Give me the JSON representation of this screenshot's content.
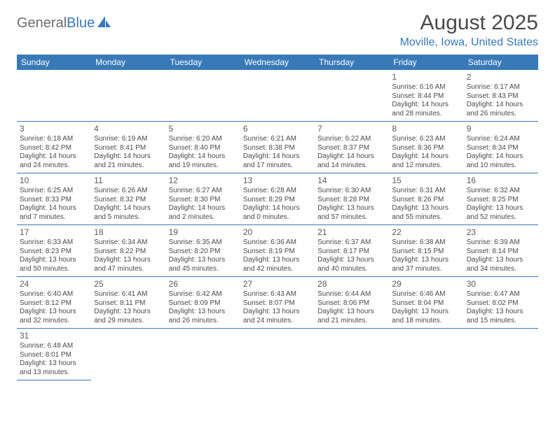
{
  "logo": {
    "part1": "General",
    "part2": "Blue"
  },
  "title": "August 2025",
  "location": "Moville, Iowa, United States",
  "colors": {
    "header_bg": "#3879b8",
    "header_text": "#ffffff",
    "body_text": "#4a4a4a",
    "accent": "#3879b8",
    "logo_gray": "#6d6d6d"
  },
  "dayHeaders": [
    "Sunday",
    "Monday",
    "Tuesday",
    "Wednesday",
    "Thursday",
    "Friday",
    "Saturday"
  ],
  "startOffset": 5,
  "days": [
    {
      "n": "1",
      "sunrise": "6:16 AM",
      "sunset": "8:44 PM",
      "dl": "14 hours and 28 minutes."
    },
    {
      "n": "2",
      "sunrise": "6:17 AM",
      "sunset": "8:43 PM",
      "dl": "14 hours and 26 minutes."
    },
    {
      "n": "3",
      "sunrise": "6:18 AM",
      "sunset": "8:42 PM",
      "dl": "14 hours and 24 minutes."
    },
    {
      "n": "4",
      "sunrise": "6:19 AM",
      "sunset": "8:41 PM",
      "dl": "14 hours and 21 minutes."
    },
    {
      "n": "5",
      "sunrise": "6:20 AM",
      "sunset": "8:40 PM",
      "dl": "14 hours and 19 minutes."
    },
    {
      "n": "6",
      "sunrise": "6:21 AM",
      "sunset": "8:38 PM",
      "dl": "14 hours and 17 minutes."
    },
    {
      "n": "7",
      "sunrise": "6:22 AM",
      "sunset": "8:37 PM",
      "dl": "14 hours and 14 minutes."
    },
    {
      "n": "8",
      "sunrise": "6:23 AM",
      "sunset": "8:36 PM",
      "dl": "14 hours and 12 minutes."
    },
    {
      "n": "9",
      "sunrise": "6:24 AM",
      "sunset": "8:34 PM",
      "dl": "14 hours and 10 minutes."
    },
    {
      "n": "10",
      "sunrise": "6:25 AM",
      "sunset": "8:33 PM",
      "dl": "14 hours and 7 minutes."
    },
    {
      "n": "11",
      "sunrise": "6:26 AM",
      "sunset": "8:32 PM",
      "dl": "14 hours and 5 minutes."
    },
    {
      "n": "12",
      "sunrise": "6:27 AM",
      "sunset": "8:30 PM",
      "dl": "14 hours and 2 minutes."
    },
    {
      "n": "13",
      "sunrise": "6:28 AM",
      "sunset": "8:29 PM",
      "dl": "14 hours and 0 minutes."
    },
    {
      "n": "14",
      "sunrise": "6:30 AM",
      "sunset": "8:28 PM",
      "dl": "13 hours and 57 minutes."
    },
    {
      "n": "15",
      "sunrise": "6:31 AM",
      "sunset": "8:26 PM",
      "dl": "13 hours and 55 minutes."
    },
    {
      "n": "16",
      "sunrise": "6:32 AM",
      "sunset": "8:25 PM",
      "dl": "13 hours and 52 minutes."
    },
    {
      "n": "17",
      "sunrise": "6:33 AM",
      "sunset": "8:23 PM",
      "dl": "13 hours and 50 minutes."
    },
    {
      "n": "18",
      "sunrise": "6:34 AM",
      "sunset": "8:22 PM",
      "dl": "13 hours and 47 minutes."
    },
    {
      "n": "19",
      "sunrise": "6:35 AM",
      "sunset": "8:20 PM",
      "dl": "13 hours and 45 minutes."
    },
    {
      "n": "20",
      "sunrise": "6:36 AM",
      "sunset": "8:19 PM",
      "dl": "13 hours and 42 minutes."
    },
    {
      "n": "21",
      "sunrise": "6:37 AM",
      "sunset": "8:17 PM",
      "dl": "13 hours and 40 minutes."
    },
    {
      "n": "22",
      "sunrise": "6:38 AM",
      "sunset": "8:15 PM",
      "dl": "13 hours and 37 minutes."
    },
    {
      "n": "23",
      "sunrise": "6:39 AM",
      "sunset": "8:14 PM",
      "dl": "13 hours and 34 minutes."
    },
    {
      "n": "24",
      "sunrise": "6:40 AM",
      "sunset": "8:12 PM",
      "dl": "13 hours and 32 minutes."
    },
    {
      "n": "25",
      "sunrise": "6:41 AM",
      "sunset": "8:11 PM",
      "dl": "13 hours and 29 minutes."
    },
    {
      "n": "26",
      "sunrise": "6:42 AM",
      "sunset": "8:09 PM",
      "dl": "13 hours and 26 minutes."
    },
    {
      "n": "27",
      "sunrise": "6:43 AM",
      "sunset": "8:07 PM",
      "dl": "13 hours and 24 minutes."
    },
    {
      "n": "28",
      "sunrise": "6:44 AM",
      "sunset": "8:06 PM",
      "dl": "13 hours and 21 minutes."
    },
    {
      "n": "29",
      "sunrise": "6:46 AM",
      "sunset": "8:04 PM",
      "dl": "13 hours and 18 minutes."
    },
    {
      "n": "30",
      "sunrise": "6:47 AM",
      "sunset": "8:02 PM",
      "dl": "13 hours and 15 minutes."
    },
    {
      "n": "31",
      "sunrise": "6:48 AM",
      "sunset": "8:01 PM",
      "dl": "13 hours and 13 minutes."
    }
  ],
  "labels": {
    "sunrise": "Sunrise: ",
    "sunset": "Sunset: ",
    "daylight": "Daylight: "
  }
}
